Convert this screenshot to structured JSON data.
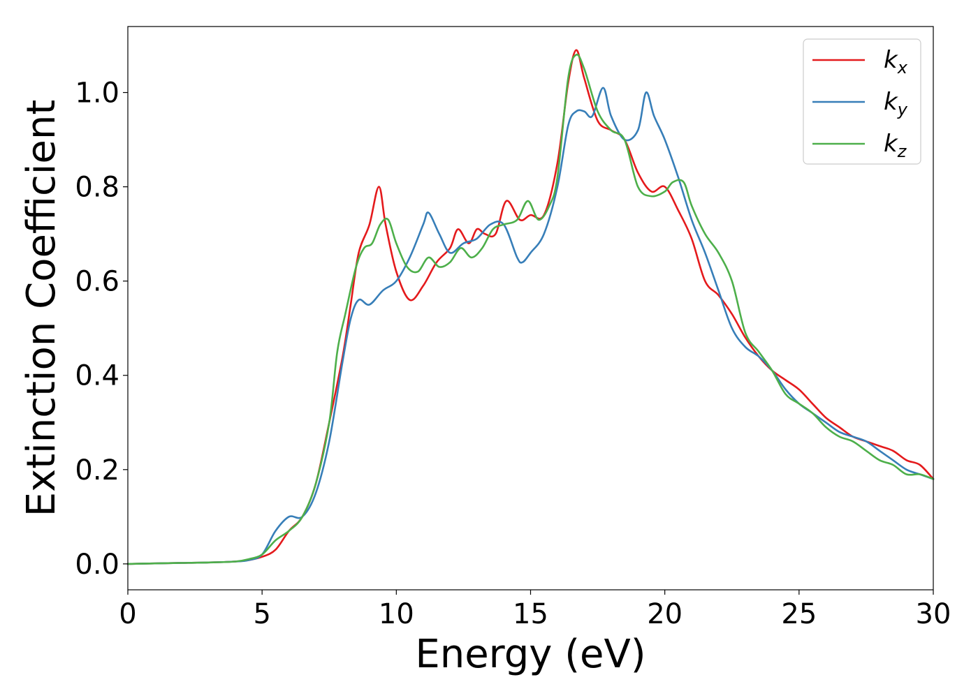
{
  "chart_data": {
    "type": "line",
    "xlabel": "Energy (eV)",
    "ylabel": "Extinction Coefficient",
    "xlim": [
      0,
      30
    ],
    "ylim": [
      -0.055,
      1.14
    ],
    "xticks": [
      0,
      5,
      10,
      15,
      20,
      25,
      30
    ],
    "xtick_labels": [
      "0",
      "5",
      "10",
      "15",
      "20",
      "25",
      "30"
    ],
    "yticks": [
      0.0,
      0.2,
      0.4,
      0.6,
      0.8,
      1.0
    ],
    "ytick_labels": [
      "0.0",
      "0.2",
      "0.4",
      "0.6",
      "0.8",
      "1.0"
    ],
    "grid": false,
    "legend_position": "top-right",
    "series": [
      {
        "name": "k",
        "subscript": "x",
        "color": "#e41a1c",
        "points": [
          [
            0,
            0.0
          ],
          [
            1,
            0.001
          ],
          [
            2,
            0.002
          ],
          [
            3,
            0.003
          ],
          [
            4,
            0.005
          ],
          [
            4.5,
            0.008
          ],
          [
            5,
            0.015
          ],
          [
            5.5,
            0.03
          ],
          [
            6,
            0.07
          ],
          [
            6.5,
            0.1
          ],
          [
            7,
            0.17
          ],
          [
            7.5,
            0.3
          ],
          [
            8,
            0.44
          ],
          [
            8.3,
            0.55
          ],
          [
            8.6,
            0.66
          ],
          [
            9.0,
            0.72
          ],
          [
            9.35,
            0.8
          ],
          [
            9.6,
            0.72
          ],
          [
            10.0,
            0.62
          ],
          [
            10.5,
            0.56
          ],
          [
            11.0,
            0.59
          ],
          [
            11.5,
            0.64
          ],
          [
            12.0,
            0.67
          ],
          [
            12.3,
            0.71
          ],
          [
            12.7,
            0.68
          ],
          [
            13.0,
            0.71
          ],
          [
            13.3,
            0.7
          ],
          [
            13.7,
            0.7
          ],
          [
            14.1,
            0.77
          ],
          [
            14.6,
            0.73
          ],
          [
            15.0,
            0.74
          ],
          [
            15.5,
            0.74
          ],
          [
            16.0,
            0.85
          ],
          [
            16.4,
            1.02
          ],
          [
            16.7,
            1.09
          ],
          [
            17.0,
            1.03
          ],
          [
            17.5,
            0.94
          ],
          [
            18.0,
            0.92
          ],
          [
            18.5,
            0.9
          ],
          [
            19.0,
            0.83
          ],
          [
            19.5,
            0.79
          ],
          [
            20.0,
            0.8
          ],
          [
            20.5,
            0.75
          ],
          [
            21.0,
            0.69
          ],
          [
            21.5,
            0.6
          ],
          [
            22.0,
            0.57
          ],
          [
            22.5,
            0.53
          ],
          [
            23.0,
            0.48
          ],
          [
            23.5,
            0.44
          ],
          [
            24.0,
            0.41
          ],
          [
            24.5,
            0.39
          ],
          [
            25.0,
            0.37
          ],
          [
            25.5,
            0.34
          ],
          [
            26.0,
            0.31
          ],
          [
            26.5,
            0.29
          ],
          [
            27.0,
            0.27
          ],
          [
            27.5,
            0.26
          ],
          [
            28.0,
            0.25
          ],
          [
            28.5,
            0.24
          ],
          [
            29.0,
            0.22
          ],
          [
            29.5,
            0.21
          ],
          [
            30.0,
            0.18
          ]
        ]
      },
      {
        "name": "k",
        "subscript": "y",
        "color": "#377eb8",
        "points": [
          [
            0,
            0.0
          ],
          [
            1,
            0.001
          ],
          [
            2,
            0.002
          ],
          [
            3,
            0.003
          ],
          [
            4,
            0.005
          ],
          [
            4.5,
            0.008
          ],
          [
            5,
            0.02
          ],
          [
            5.5,
            0.07
          ],
          [
            6,
            0.1
          ],
          [
            6.5,
            0.1
          ],
          [
            7,
            0.15
          ],
          [
            7.5,
            0.26
          ],
          [
            8,
            0.43
          ],
          [
            8.3,
            0.52
          ],
          [
            8.6,
            0.56
          ],
          [
            9.0,
            0.55
          ],
          [
            9.5,
            0.58
          ],
          [
            10.0,
            0.6
          ],
          [
            10.5,
            0.65
          ],
          [
            11.0,
            0.72
          ],
          [
            11.2,
            0.745
          ],
          [
            11.6,
            0.7
          ],
          [
            12.0,
            0.66
          ],
          [
            12.5,
            0.68
          ],
          [
            13.0,
            0.69
          ],
          [
            13.5,
            0.72
          ],
          [
            14.0,
            0.72
          ],
          [
            14.5,
            0.65
          ],
          [
            14.7,
            0.64
          ],
          [
            15.0,
            0.66
          ],
          [
            15.5,
            0.7
          ],
          [
            16.0,
            0.8
          ],
          [
            16.4,
            0.93
          ],
          [
            16.7,
            0.96
          ],
          [
            17.0,
            0.96
          ],
          [
            17.3,
            0.95
          ],
          [
            17.7,
            1.01
          ],
          [
            18.0,
            0.95
          ],
          [
            18.5,
            0.9
          ],
          [
            19.0,
            0.92
          ],
          [
            19.3,
            1.0
          ],
          [
            19.6,
            0.95
          ],
          [
            20.0,
            0.9
          ],
          [
            20.5,
            0.82
          ],
          [
            21.0,
            0.73
          ],
          [
            21.5,
            0.66
          ],
          [
            22.0,
            0.58
          ],
          [
            22.5,
            0.5
          ],
          [
            23.0,
            0.46
          ],
          [
            23.5,
            0.44
          ],
          [
            24.0,
            0.41
          ],
          [
            24.5,
            0.37
          ],
          [
            25.0,
            0.34
          ],
          [
            25.5,
            0.32
          ],
          [
            26.0,
            0.3
          ],
          [
            26.5,
            0.28
          ],
          [
            27.0,
            0.27
          ],
          [
            27.5,
            0.26
          ],
          [
            28.0,
            0.24
          ],
          [
            28.5,
            0.22
          ],
          [
            29.0,
            0.2
          ],
          [
            29.5,
            0.19
          ],
          [
            30.0,
            0.18
          ]
        ]
      },
      {
        "name": "k",
        "subscript": "z",
        "color": "#4daf4a",
        "points": [
          [
            0,
            0.0
          ],
          [
            1,
            0.001
          ],
          [
            2,
            0.002
          ],
          [
            3,
            0.003
          ],
          [
            4,
            0.005
          ],
          [
            4.5,
            0.01
          ],
          [
            5,
            0.02
          ],
          [
            5.5,
            0.05
          ],
          [
            6,
            0.07
          ],
          [
            6.5,
            0.1
          ],
          [
            7,
            0.17
          ],
          [
            7.5,
            0.3
          ],
          [
            7.8,
            0.45
          ],
          [
            8.1,
            0.53
          ],
          [
            8.5,
            0.63
          ],
          [
            8.8,
            0.67
          ],
          [
            9.1,
            0.68
          ],
          [
            9.4,
            0.72
          ],
          [
            9.7,
            0.73
          ],
          [
            10.0,
            0.68
          ],
          [
            10.4,
            0.63
          ],
          [
            10.8,
            0.62
          ],
          [
            11.2,
            0.65
          ],
          [
            11.6,
            0.63
          ],
          [
            12.0,
            0.64
          ],
          [
            12.4,
            0.67
          ],
          [
            12.8,
            0.65
          ],
          [
            13.2,
            0.67
          ],
          [
            13.6,
            0.71
          ],
          [
            14.0,
            0.72
          ],
          [
            14.5,
            0.73
          ],
          [
            14.9,
            0.77
          ],
          [
            15.3,
            0.73
          ],
          [
            15.7,
            0.76
          ],
          [
            16.0,
            0.82
          ],
          [
            16.4,
            1.03
          ],
          [
            16.7,
            1.08
          ],
          [
            17.0,
            1.05
          ],
          [
            17.5,
            0.96
          ],
          [
            18.0,
            0.92
          ],
          [
            18.5,
            0.9
          ],
          [
            19.0,
            0.8
          ],
          [
            19.5,
            0.78
          ],
          [
            20.0,
            0.79
          ],
          [
            20.3,
            0.81
          ],
          [
            20.7,
            0.81
          ],
          [
            21.0,
            0.76
          ],
          [
            21.5,
            0.7
          ],
          [
            22.0,
            0.66
          ],
          [
            22.5,
            0.6
          ],
          [
            23.0,
            0.49
          ],
          [
            23.5,
            0.45
          ],
          [
            24.0,
            0.41
          ],
          [
            24.5,
            0.36
          ],
          [
            25.0,
            0.34
          ],
          [
            25.5,
            0.32
          ],
          [
            26.0,
            0.29
          ],
          [
            26.5,
            0.27
          ],
          [
            27.0,
            0.26
          ],
          [
            27.5,
            0.24
          ],
          [
            28.0,
            0.22
          ],
          [
            28.5,
            0.21
          ],
          [
            29.0,
            0.19
          ],
          [
            29.5,
            0.19
          ],
          [
            30.0,
            0.18
          ]
        ]
      }
    ]
  }
}
